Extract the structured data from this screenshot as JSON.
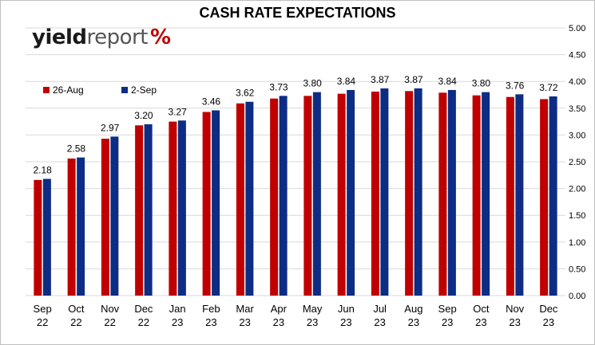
{
  "logo": {
    "part1": "yield",
    "part2": "report",
    "part3": "%"
  },
  "chart_data": {
    "type": "bar",
    "title": "CASH RATE EXPECTATIONS",
    "categories": [
      "Sep 22",
      "Oct 22",
      "Nov 22",
      "Dec 22",
      "Jan 23",
      "Feb 23",
      "Mar 23",
      "Apr 23",
      "May 23",
      "Jun 23",
      "Jul 23",
      "Aug 23",
      "Sep 23",
      "Oct 23",
      "Nov 23",
      "Dec 23"
    ],
    "category_lines": [
      [
        "Sep",
        "22"
      ],
      [
        "Oct",
        "22"
      ],
      [
        "Nov",
        "22"
      ],
      [
        "Dec",
        "22"
      ],
      [
        "Jan",
        "23"
      ],
      [
        "Feb",
        "23"
      ],
      [
        "Mar",
        "23"
      ],
      [
        "Apr",
        "23"
      ],
      [
        "May",
        "23"
      ],
      [
        "Jun",
        "23"
      ],
      [
        "Jul",
        "23"
      ],
      [
        "Aug",
        "23"
      ],
      [
        "Sep",
        "23"
      ],
      [
        "Oct",
        "23"
      ],
      [
        "Nov",
        "23"
      ],
      [
        "Dec",
        "23"
      ]
    ],
    "series": [
      {
        "name": "26-Aug",
        "color": "#c00000",
        "values": [
          2.16,
          2.56,
          2.93,
          3.18,
          3.25,
          3.43,
          3.59,
          3.68,
          3.73,
          3.77,
          3.81,
          3.82,
          3.79,
          3.74,
          3.71,
          3.67
        ]
      },
      {
        "name": "2-Sep",
        "color": "#0c2d83",
        "values": [
          2.18,
          2.58,
          2.97,
          3.2,
          3.27,
          3.46,
          3.62,
          3.73,
          3.8,
          3.84,
          3.87,
          3.87,
          3.84,
          3.8,
          3.76,
          3.72
        ]
      }
    ],
    "data_labels": [
      "2.18",
      "2.58",
      "2.97",
      "3.20",
      "3.27",
      "3.46",
      "3.62",
      "3.73",
      "3.80",
      "3.84",
      "3.87",
      "3.87",
      "3.84",
      "3.80",
      "3.76",
      "3.72"
    ],
    "data_labels_series": "2-Sep",
    "ylim": [
      0,
      5
    ],
    "y_ticks": [
      "0.00",
      "0.50",
      "1.00",
      "1.50",
      "2.00",
      "2.50",
      "3.00",
      "3.50",
      "4.00",
      "4.50",
      "5.00"
    ],
    "y_axis_side": "right",
    "grid": true,
    "legend_position": "top-left"
  }
}
